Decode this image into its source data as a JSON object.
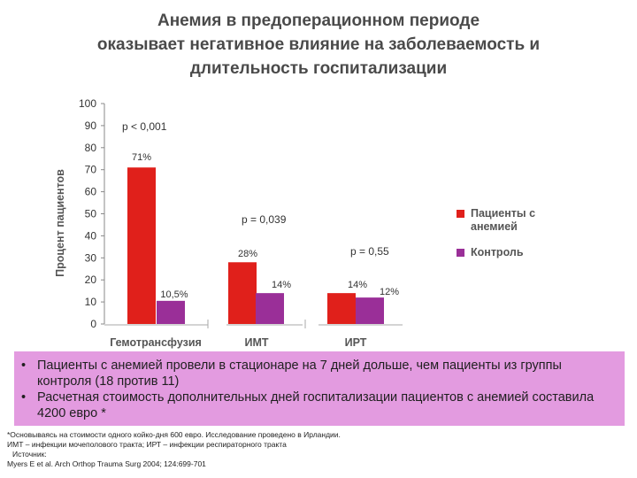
{
  "title": {
    "line1": "Анемия в предоперационном периоде",
    "line2": "оказывает негативное влияние на заболеваемость и",
    "line3": "длительность госпитализации"
  },
  "chart_data": {
    "type": "bar",
    "ylabel": "Процент пациентов",
    "ylim": [
      0,
      100
    ],
    "yticks": [
      0,
      10,
      20,
      30,
      40,
      50,
      60,
      70,
      80,
      90,
      100
    ],
    "categories": [
      "Гемотрансфузия",
      "ИМТ",
      "ИРТ"
    ],
    "series": [
      {
        "name": "Пациенты с анемией",
        "color": "#e0201b",
        "values": [
          71,
          28,
          14
        ],
        "labels": [
          "71%",
          "28%",
          "14%"
        ]
      },
      {
        "name": "Контроль",
        "color": "#9a2f98",
        "values": [
          10.5,
          14,
          12
        ],
        "labels": [
          "10,5%",
          "14%",
          "12%"
        ]
      }
    ],
    "pvalues": [
      "p < 0,001",
      "p = 0,039",
      "p = 0,55"
    ],
    "legend_position": "right"
  },
  "bullets": [
    "Пациенты с анемией провели в стационаре на 7 дней дольше, чем пациенты из группы контроля (18 против 11)",
    "Расчетная стоимость дополнительных дней госпитализации пациентов с анемией составила 4200 евро *"
  ],
  "footnotes": {
    "line1": "*Основываясь на стоимости одного койко-дня 600 евро. Исследование проведено в Ирландии.",
    "line2": "ИМТ – инфекции мочеполового тракта; ИРТ – инфекции респираторного тракта",
    "line3": "Источник:",
    "line4": "Myers E et al. Arch Orthop Trauma Surg 2004; 124:699-701"
  }
}
